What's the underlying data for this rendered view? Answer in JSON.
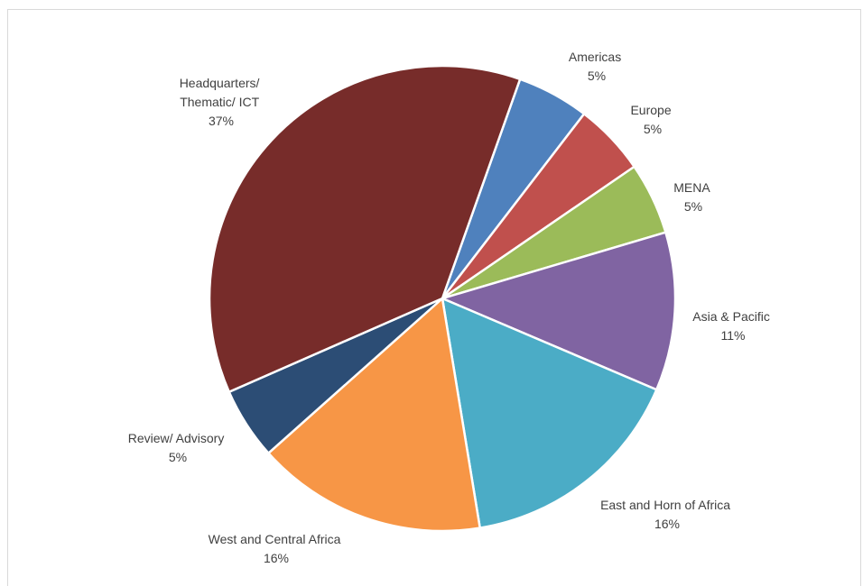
{
  "chart_data": {
    "type": "pie",
    "title": "",
    "start_category": "Americas",
    "direction": "clockwise",
    "slices": [
      {
        "label": "Americas",
        "value": 5,
        "value_label": "5%",
        "color": "#4f81bd"
      },
      {
        "label": "Europe",
        "value": 5,
        "value_label": "5%",
        "color": "#c0504d"
      },
      {
        "label": "MENA",
        "value": 5,
        "value_label": "5%",
        "color": "#9bbb59"
      },
      {
        "label": "Asia & Pacific",
        "value": 11,
        "value_label": "11%",
        "color": "#8064a2"
      },
      {
        "label": "East and Horn of Africa",
        "value": 16,
        "value_label": "16%",
        "color": "#4bacc6"
      },
      {
        "label": "West and Central Africa",
        "value": 16,
        "value_label": "16%",
        "color": "#f79646"
      },
      {
        "label": "Review/ Advisory",
        "value": 5,
        "value_label": "5%",
        "color": "#2c4d75"
      },
      {
        "label": "Headquarters/ Thematic/ ICT",
        "value": 37,
        "value_label": "37%",
        "color": "#772c2a"
      }
    ]
  }
}
